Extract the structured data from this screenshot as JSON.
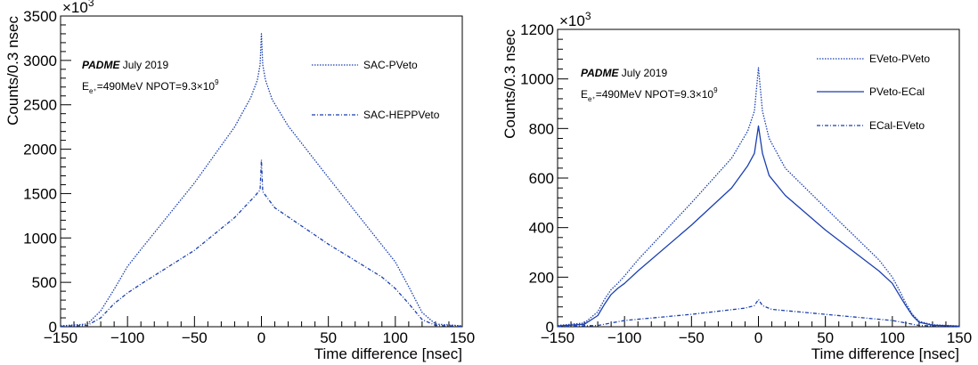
{
  "chart_data": [
    {
      "type": "line",
      "xlabel": "Time difference [nsec]",
      "ylabel": "Counts/0.3 nsec",
      "y_multiplier": "×10",
      "y_multiplier_exp": "3",
      "xlim": [
        -150,
        150
      ],
      "ylim": [
        0,
        3500
      ],
      "xticks": [
        -150,
        -100,
        -50,
        0,
        50,
        100,
        150
      ],
      "xtick_labels": [
        "−150",
        "−100",
        "−50",
        "0",
        "50",
        "100",
        "150"
      ],
      "yticks": [
        0,
        500,
        1000,
        1500,
        2000,
        2500,
        3000,
        3500
      ],
      "ytick_labels": [
        "0",
        "500",
        "1000",
        "1500",
        "2000",
        "2500",
        "3000",
        "3500"
      ],
      "grid": false,
      "legend_position": "top-right",
      "annotation": {
        "brand": "PADME",
        "date": " July 2019",
        "energy_E": "E",
        "energy_sub": "e⁺",
        "energy_text": "=490MeV NPOT=9.3×10",
        "energy_exp": "9"
      },
      "series": [
        {
          "name": "SAC-PVeto",
          "color": "#1a3fb0",
          "dash": "1.5,1.5",
          "x": [
            -150,
            -130,
            -120,
            -110,
            -100,
            -90,
            -50,
            -20,
            -8,
            -3,
            -1,
            0,
            1,
            3,
            8,
            20,
            50,
            90,
            100,
            110,
            120,
            130,
            150
          ],
          "y": [
            10,
            30,
            180,
            420,
            680,
            870,
            1620,
            2250,
            2580,
            2780,
            2950,
            3300,
            2950,
            2780,
            2560,
            2260,
            1680,
            920,
            730,
            450,
            160,
            30,
            10
          ]
        },
        {
          "name": "SAC-HEPPVeto",
          "color": "#1a3fb0",
          "dash": "4,2,1,2",
          "x": [
            -150,
            -130,
            -120,
            -110,
            -100,
            -90,
            -50,
            -20,
            -5,
            -1,
            0,
            1,
            3,
            10,
            50,
            90,
            100,
            110,
            120,
            130,
            150
          ],
          "y": [
            5,
            15,
            100,
            260,
            380,
            480,
            860,
            1230,
            1470,
            1540,
            1880,
            1520,
            1480,
            1340,
            930,
            560,
            430,
            260,
            80,
            15,
            5
          ]
        }
      ]
    },
    {
      "type": "line",
      "xlabel": "Time difference [nsec]",
      "ylabel": "Counts/0.3 nsec",
      "y_multiplier": "×10",
      "y_multiplier_exp": "3",
      "xlim": [
        -150,
        150
      ],
      "ylim": [
        0,
        1200
      ],
      "xticks": [
        -150,
        -100,
        -50,
        0,
        50,
        100,
        150
      ],
      "xtick_labels": [
        "−150",
        "−100",
        "−50",
        "0",
        "50",
        "100",
        "150"
      ],
      "yticks": [
        0,
        200,
        400,
        600,
        800,
        1000,
        1200
      ],
      "ytick_labels": [
        "0",
        "200",
        "400",
        "600",
        "800",
        "1000",
        "1200"
      ],
      "grid": false,
      "legend_position": "top-right",
      "annotation": {
        "brand": "PADME",
        "date": " July 2019",
        "energy_E": "E",
        "energy_sub": "e⁺",
        "energy_text": "=490MeV NPOT=9.3×10",
        "energy_exp": "9"
      },
      "series": [
        {
          "name": "EVeto-PVeto",
          "color": "#1a3fb0",
          "dash": "1.5,1.5",
          "x": [
            -150,
            -130,
            -120,
            -115,
            -110,
            -105,
            -100,
            -90,
            -50,
            -20,
            -8,
            -3,
            0,
            3,
            8,
            20,
            50,
            90,
            100,
            105,
            110,
            115,
            120,
            130,
            150
          ],
          "y": [
            5,
            15,
            60,
            110,
            150,
            175,
            205,
            270,
            500,
            680,
            790,
            870,
            1045,
            870,
            760,
            640,
            480,
            270,
            200,
            150,
            95,
            50,
            22,
            8,
            3
          ]
        },
        {
          "name": "PVeto-ECal",
          "color": "#1a3fb0",
          "dash": "",
          "x": [
            -150,
            -130,
            -120,
            -115,
            -110,
            -105,
            -100,
            -90,
            -50,
            -20,
            -8,
            -3,
            0,
            3,
            8,
            20,
            50,
            90,
            100,
            105,
            110,
            115,
            120,
            130,
            150
          ],
          "y": [
            3,
            10,
            45,
            90,
            130,
            155,
            175,
            225,
            410,
            560,
            650,
            700,
            810,
            700,
            610,
            530,
            390,
            225,
            175,
            130,
            85,
            45,
            18,
            6,
            2
          ]
        },
        {
          "name": "ECal-EVeto",
          "color": "#1a3fb0",
          "dash": "4,2,1,2",
          "x": [
            -150,
            -120,
            -110,
            -100,
            -50,
            -10,
            -3,
            0,
            3,
            10,
            50,
            100,
            110,
            120,
            150
          ],
          "y": [
            1,
            5,
            15,
            25,
            50,
            75,
            85,
            110,
            85,
            70,
            50,
            25,
            15,
            5,
            1
          ]
        }
      ]
    }
  ]
}
